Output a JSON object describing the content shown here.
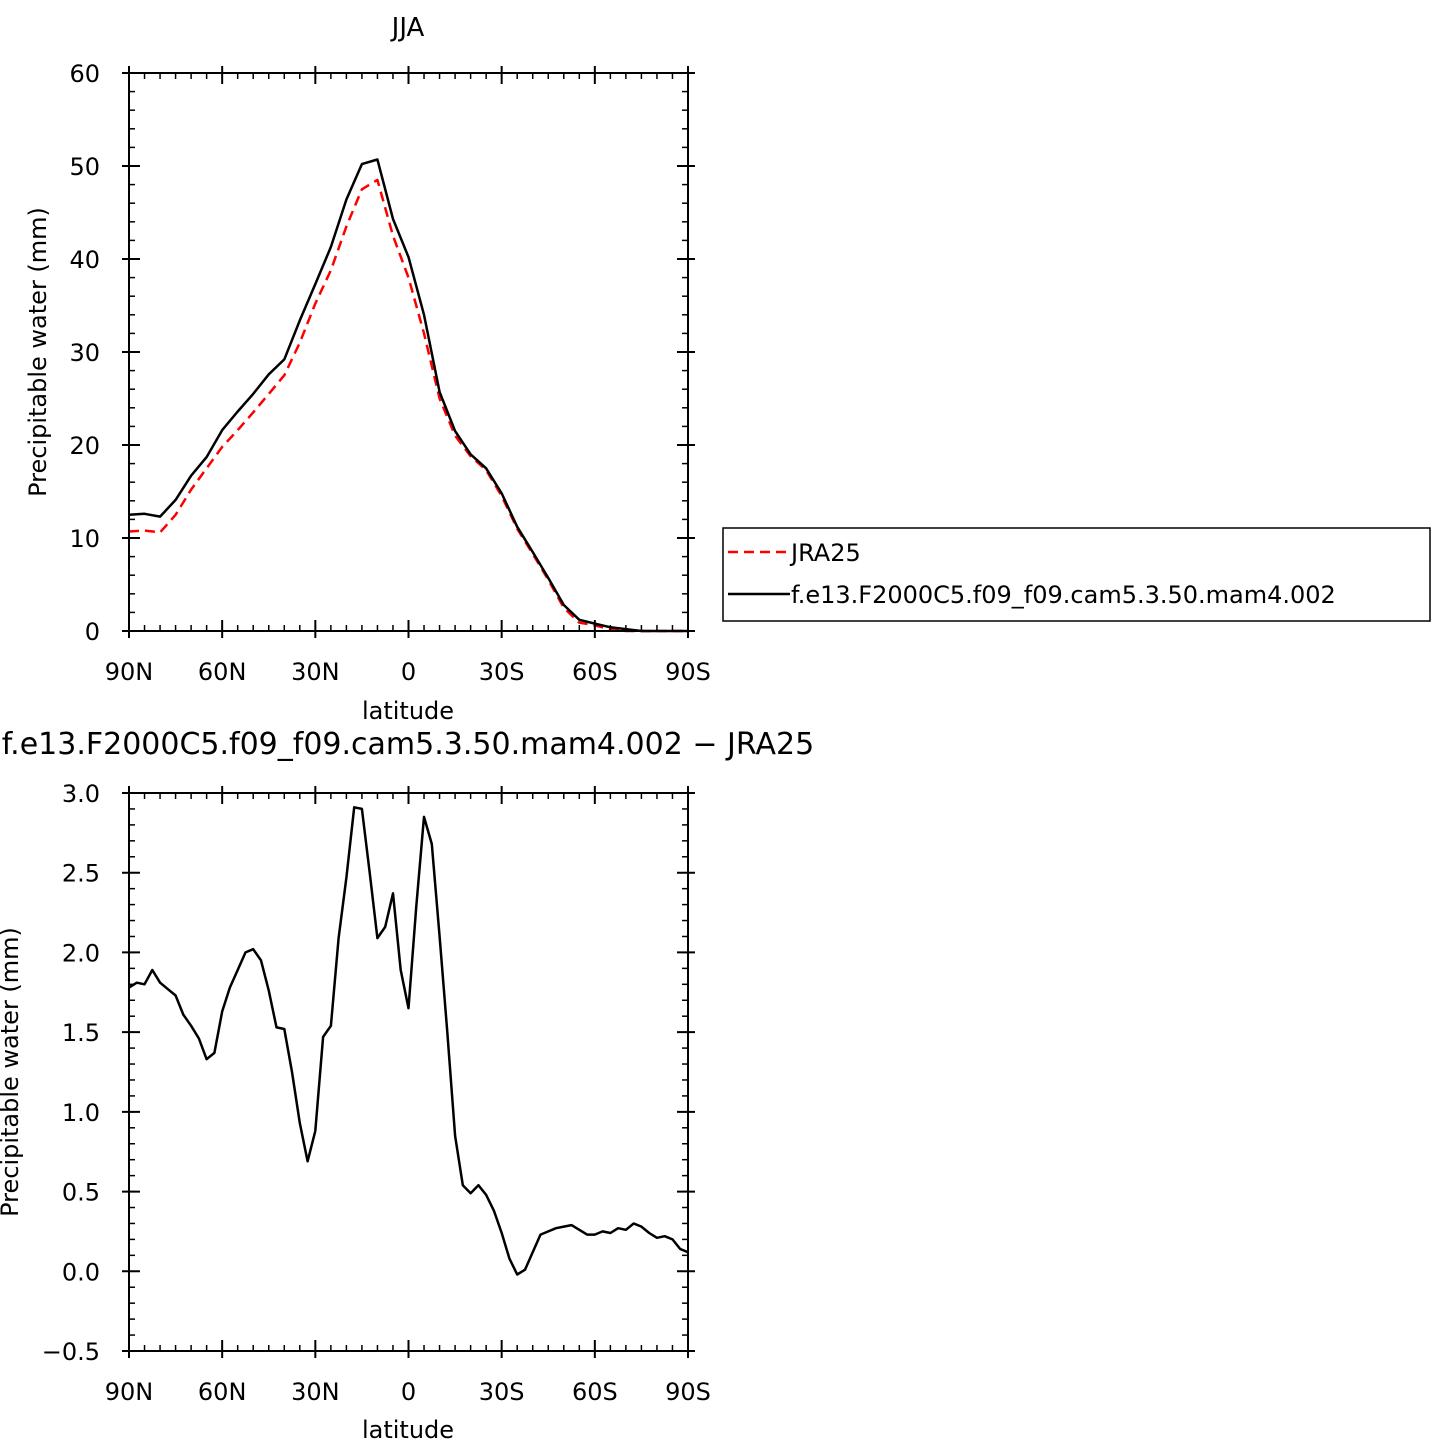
{
  "chart_data": [
    {
      "type": "line",
      "title": "JJA",
      "xlabel": "latitude",
      "ylabel": "Precipitable water (mm)",
      "xlim": [
        -90,
        90
      ],
      "ylim": [
        0,
        60
      ],
      "x_ticks": [
        -90,
        -60,
        -30,
        0,
        30,
        60,
        90
      ],
      "x_tick_labels": [
        "90N",
        "60N",
        "30N",
        "0",
        "30S",
        "60S",
        "90S"
      ],
      "y_ticks": [
        0,
        10,
        20,
        30,
        40,
        50,
        60
      ],
      "y_tick_labels": [
        "0",
        "10",
        "20",
        "30",
        "40",
        "50",
        "60"
      ],
      "grid": false,
      "legend_position": "right",
      "series": [
        {
          "name": "JRA25",
          "color": "#ff0000",
          "dash": "dashed",
          "x": [
            -90,
            -85,
            -80,
            -75,
            -70,
            -65,
            -60,
            -55,
            -50,
            -45,
            -40,
            -35,
            -30,
            -25,
            -20,
            -15,
            -10,
            -5,
            0,
            5,
            10,
            15,
            20,
            25,
            30,
            35,
            40,
            45,
            50,
            55,
            60,
            65,
            70,
            75,
            80,
            85,
            90
          ],
          "y": [
            10.7,
            10.8,
            10.6,
            12.5,
            15.2,
            17.5,
            19.8,
            21.6,
            23.5,
            25.5,
            27.5,
            31.0,
            35.2,
            38.8,
            43.5,
            47.5,
            48.5,
            42.5,
            38.0,
            32.0,
            25.0,
            21.0,
            18.8,
            17.3,
            14.5,
            11.0,
            8.3,
            5.5,
            2.5,
            0.9,
            0.6,
            0.2,
            0.0,
            0.0,
            0.0,
            0.0,
            0.0
          ]
        },
        {
          "name": "f.e13.F2000C5.f09_f09.cam5.3.50.mam4.002",
          "color": "#000000",
          "dash": "solid",
          "x": [
            -90,
            -85,
            -80,
            -75,
            -70,
            -65,
            -60,
            -55,
            -50,
            -45,
            -40,
            -35,
            -30,
            -25,
            -20,
            -15,
            -10,
            -5,
            0,
            5,
            10,
            15,
            20,
            25,
            30,
            35,
            40,
            45,
            50,
            55,
            60,
            65,
            70,
            75,
            80,
            85,
            90
          ],
          "y": [
            12.5,
            12.6,
            12.3,
            14.1,
            16.7,
            18.7,
            21.6,
            23.6,
            25.5,
            27.6,
            29.2,
            33.4,
            37.3,
            41.3,
            46.4,
            50.2,
            50.7,
            44.3,
            40.2,
            34.0,
            25.7,
            21.5,
            19.0,
            17.5,
            14.8,
            11.2,
            8.5,
            5.7,
            2.8,
            1.2,
            0.8,
            0.4,
            0.2,
            0.0,
            0.0,
            0.0,
            0.0
          ]
        }
      ]
    },
    {
      "type": "line",
      "title": "f.e13.F2000C5.f09_f09.cam5.3.50.mam4.002 − JRA25",
      "xlabel": "latitude",
      "ylabel": "Precipitable water (mm)",
      "xlim": [
        -90,
        90
      ],
      "ylim": [
        -0.5,
        3.0
      ],
      "x_ticks": [
        -90,
        -60,
        -30,
        0,
        30,
        60,
        90
      ],
      "x_tick_labels": [
        "90N",
        "60N",
        "30N",
        "0",
        "30S",
        "60S",
        "90S"
      ],
      "y_ticks": [
        -0.5,
        0.0,
        0.5,
        1.0,
        1.5,
        2.0,
        2.5,
        3.0
      ],
      "y_tick_labels": [
        "−0.5",
        "0.0",
        "0.5",
        "1.0",
        "1.5",
        "2.0",
        "2.5",
        "3.0"
      ],
      "grid": false,
      "series": [
        {
          "color": "#000000",
          "dash": "solid",
          "x": [
            -90,
            -87.5,
            -85,
            -82.5,
            -80,
            -77.5,
            -75,
            -72.5,
            -70,
            -67.5,
            -65,
            -62.5,
            -60,
            -57.5,
            -55,
            -52.5,
            -50,
            -47.5,
            -45,
            -42.5,
            -40,
            -37.5,
            -35,
            -32.5,
            -30,
            -27.5,
            -25,
            -22.5,
            -20,
            -17.5,
            -15,
            -12.5,
            -10,
            -7.5,
            -5,
            -2.5,
            0,
            2.5,
            5,
            7.5,
            10,
            12.5,
            15,
            17.5,
            20,
            22.5,
            25,
            27.5,
            30,
            32.5,
            35,
            37.5,
            40,
            42.5,
            45,
            47.5,
            50,
            52.5,
            55,
            57.5,
            60,
            62.5,
            65,
            67.5,
            70,
            72.5,
            75,
            77.5,
            80,
            82.5,
            85,
            87.5,
            90
          ],
          "y": [
            1.78,
            1.81,
            1.8,
            1.89,
            1.81,
            1.77,
            1.73,
            1.61,
            1.54,
            1.46,
            1.33,
            1.37,
            1.63,
            1.78,
            1.89,
            2.0,
            2.02,
            1.95,
            1.76,
            1.53,
            1.52,
            1.25,
            0.93,
            0.69,
            0.88,
            1.47,
            1.54,
            2.09,
            2.47,
            2.91,
            2.9,
            2.5,
            2.09,
            2.16,
            2.37,
            1.89,
            1.65,
            2.29,
            2.85,
            2.68,
            2.1,
            1.5,
            0.85,
            0.54,
            0.49,
            0.54,
            0.48,
            0.38,
            0.24,
            0.08,
            -0.02,
            0.01,
            0.12,
            0.23,
            0.25,
            0.27,
            0.28,
            0.29,
            0.26,
            0.23,
            0.23,
            0.25,
            0.24,
            0.27,
            0.26,
            0.3,
            0.28,
            0.24,
            0.21,
            0.22,
            0.2,
            0.14,
            0.12
          ]
        }
      ]
    }
  ]
}
